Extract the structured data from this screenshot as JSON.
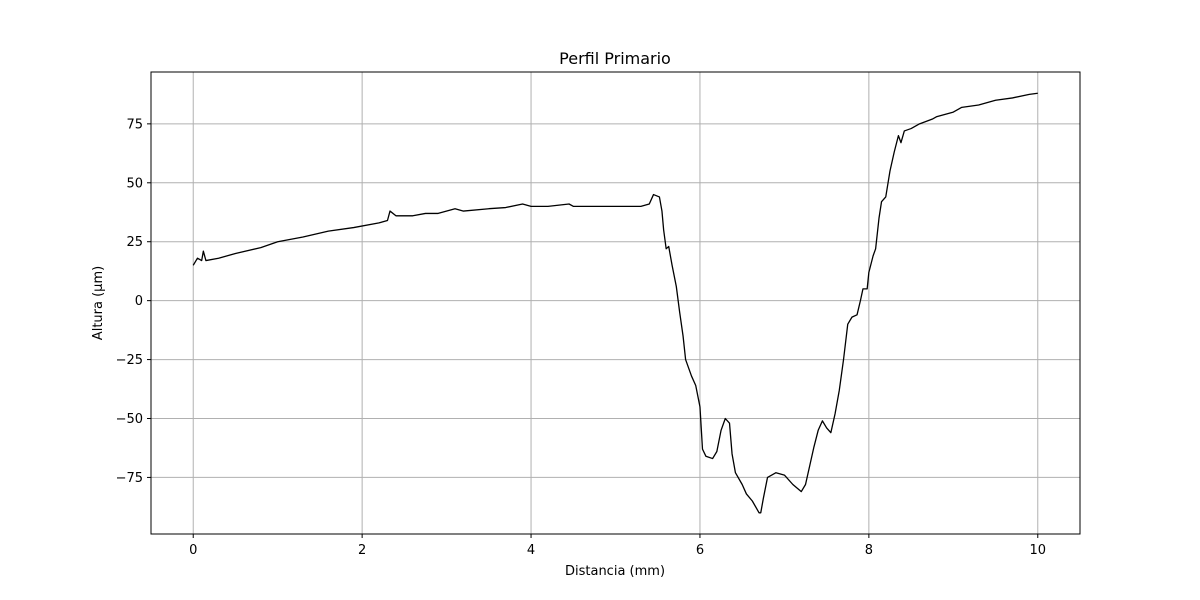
{
  "chart_data": {
    "type": "line",
    "title": "Perfil Primario",
    "x_label": "Distancia (mm)",
    "y_label": "Altura (µm)",
    "x": [
      0,
      0.05,
      0.1,
      0.12,
      0.15,
      0.3,
      0.5,
      0.8,
      1.0,
      1.3,
      1.6,
      1.9,
      2.2,
      2.3,
      2.33,
      2.4,
      2.6,
      2.75,
      2.9,
      3.1,
      3.2,
      3.5,
      3.7,
      3.9,
      4.0,
      4.2,
      4.45,
      4.5,
      5.0,
      5.3,
      5.4,
      5.45,
      5.52,
      5.55,
      5.57,
      5.6,
      5.63,
      5.67,
      5.72,
      5.76,
      5.8,
      5.83,
      5.9,
      5.95,
      6.0,
      6.03,
      6.07,
      6.15,
      6.2,
      6.25,
      6.3,
      6.35,
      6.38,
      6.42,
      6.5,
      6.55,
      6.62,
      6.7,
      6.72,
      6.75,
      6.8,
      6.9,
      7.0,
      7.1,
      7.2,
      7.25,
      7.3,
      7.35,
      7.4,
      7.45,
      7.5,
      7.55,
      7.6,
      7.65,
      7.7,
      7.75,
      7.8,
      7.86,
      7.9,
      7.93,
      7.98,
      8.0,
      8.05,
      8.08,
      8.12,
      8.15,
      8.2,
      8.25,
      8.3,
      8.35,
      8.38,
      8.42,
      8.5,
      8.6,
      8.75,
      8.8,
      9.0,
      9.1,
      9.3,
      9.5,
      9.7,
      9.9,
      10.0
    ],
    "values": [
      15,
      18,
      17,
      21,
      17,
      18,
      20,
      22.5,
      25,
      27,
      29.5,
      31,
      33,
      34,
      38,
      36,
      36,
      37,
      37,
      39,
      38,
      39,
      39.5,
      41,
      40,
      40,
      41,
      40,
      40,
      40,
      41,
      45,
      44,
      38,
      30,
      22,
      23,
      15,
      6,
      -5,
      -15,
      -25,
      -32,
      -36,
      -45,
      -63,
      -66,
      -67,
      -64,
      -55,
      -50,
      -52,
      -65,
      -73,
      -78,
      -82,
      -85,
      -90,
      -90,
      -84,
      -75,
      -73,
      -74,
      -78,
      -81,
      -78,
      -70,
      -62,
      -55,
      -51,
      -54,
      -56,
      -48,
      -38,
      -25,
      -10,
      -7,
      -6,
      0,
      5,
      5,
      12,
      19,
      22,
      35,
      42,
      44,
      55,
      63,
      70,
      67,
      72,
      73,
      75,
      77,
      78,
      80,
      82,
      83,
      85,
      86,
      87.5,
      88
    ],
    "color": "#000000",
    "xlim": [
      -0.5,
      10.5
    ],
    "ylim": [
      -99,
      97
    ],
    "xticks": [
      0,
      2,
      4,
      6,
      8,
      10
    ],
    "yticks": [
      {
        "value": -75,
        "label": "−75"
      },
      {
        "value": -50,
        "label": "−50"
      },
      {
        "value": -25,
        "label": "−25"
      },
      0,
      25,
      50,
      75
    ],
    "grid": true
  }
}
